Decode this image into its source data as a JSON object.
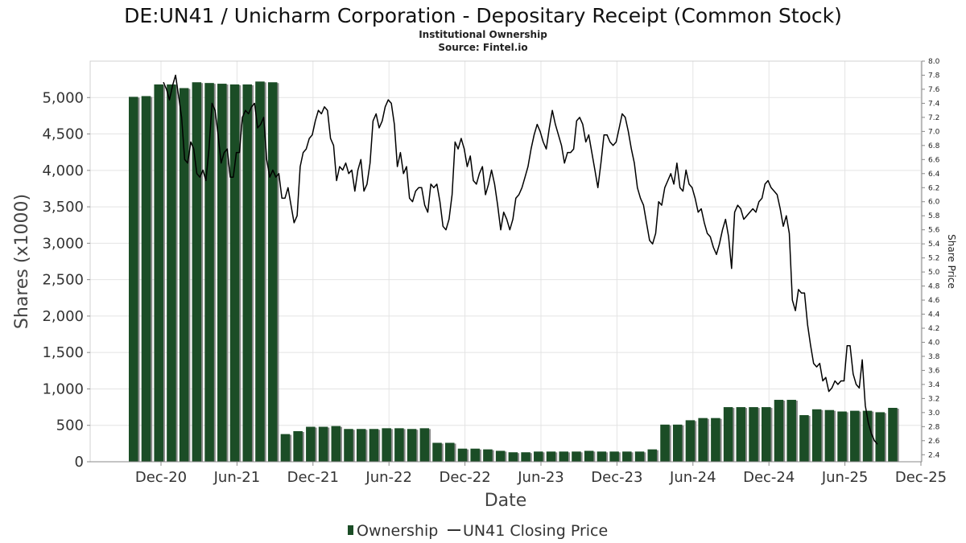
{
  "title": "DE:UN41 / Unicharm Corporation - Depositary Receipt (Common Stock)",
  "subtitle": "Institutional Ownership",
  "source": "Source: Fintel.io",
  "chart_data": {
    "type": "bar",
    "xlabel": "Date",
    "ylabel": "Shares (x1000)",
    "y2label": "Share Price",
    "ylim": [
      0,
      5500
    ],
    "y2lim": [
      2.3,
      8.0
    ],
    "grid": true,
    "legend_position": "bottom",
    "x_ticks": [
      "Dec-20",
      "Jun-21",
      "Dec-21",
      "Jun-22",
      "Dec-22",
      "Jun-23",
      "Dec-23",
      "Jun-24",
      "Dec-24",
      "Jun-25",
      "Dec-25"
    ],
    "y_ticks": [
      "0",
      "500",
      "1,000",
      "1,500",
      "2,000",
      "2,500",
      "3,000",
      "3,500",
      "4,000",
      "4,500",
      "5,000"
    ],
    "y2_ticks": [
      "2.4",
      "2.6",
      "2.8",
      "3.0",
      "3.2",
      "3.4",
      "3.6",
      "3.8",
      "4.0",
      "4.2",
      "4.4",
      "4.6",
      "4.8",
      "5.0",
      "5.2",
      "5.4",
      "5.6",
      "5.8",
      "6.0",
      "6.2",
      "6.4",
      "6.6",
      "6.8",
      "7.0",
      "7.2",
      "7.4",
      "7.6",
      "7.8",
      "8.0"
    ],
    "series": [
      {
        "name": "Ownership",
        "color": "#1b4d26",
        "values": [
          5010,
          5020,
          5180,
          5180,
          5130,
          5210,
          5200,
          5190,
          5180,
          5180,
          5220,
          5210,
          380,
          420,
          480,
          480,
          490,
          450,
          450,
          450,
          460,
          460,
          450,
          460,
          260,
          260,
          180,
          180,
          170,
          150,
          130,
          130,
          140,
          140,
          140,
          140,
          150,
          140,
          140,
          140,
          140,
          170,
          510,
          510,
          570,
          600,
          600,
          750,
          750,
          750,
          750,
          850,
          850,
          640,
          720,
          710,
          690,
          700,
          700,
          680,
          740
        ]
      },
      {
        "name": "UN41 Closing Price",
        "color": "#000000",
        "values": [
          7.7,
          7.6,
          7.45,
          7.65,
          7.8,
          7.5,
          7.2,
          6.6,
          6.55,
          6.85,
          6.75,
          6.4,
          6.35,
          6.45,
          6.3,
          6.75,
          7.4,
          7.3,
          6.95,
          6.55,
          6.7,
          6.75,
          6.35,
          6.35,
          6.7,
          6.7,
          7.2,
          7.3,
          7.25,
          7.35,
          7.4,
          7.05,
          7.1,
          7.2,
          6.6,
          6.35,
          6.45,
          6.35,
          6.4,
          6.05,
          6.05,
          6.2,
          5.95,
          5.7,
          5.8,
          6.5,
          6.7,
          6.75,
          6.9,
          6.95,
          7.15,
          7.3,
          7.25,
          7.35,
          7.3,
          6.9,
          6.8,
          6.3,
          6.5,
          6.45,
          6.55,
          6.4,
          6.45,
          6.15,
          6.45,
          6.6,
          6.15,
          6.25,
          6.55,
          7.15,
          7.25,
          7.05,
          7.15,
          7.35,
          7.45,
          7.4,
          7.1,
          6.5,
          6.7,
          6.4,
          6.5,
          6.05,
          6.0,
          6.15,
          6.2,
          6.2,
          5.95,
          5.85,
          6.25,
          6.2,
          6.25,
          6.0,
          5.65,
          5.6,
          5.75,
          6.1,
          6.85,
          6.75,
          6.9,
          6.75,
          6.5,
          6.65,
          6.3,
          6.25,
          6.4,
          6.5,
          6.1,
          6.25,
          6.45,
          6.25,
          5.95,
          5.6,
          5.85,
          5.75,
          5.6,
          5.75,
          6.05,
          6.1,
          6.2,
          6.35,
          6.5,
          6.75,
          6.95,
          7.1,
          7.0,
          6.85,
          6.75,
          7.05,
          7.3,
          7.1,
          6.95,
          6.8,
          6.55,
          6.7,
          6.7,
          6.75,
          7.15,
          7.2,
          7.1,
          6.85,
          6.95,
          6.7,
          6.45,
          6.2,
          6.55,
          6.95,
          6.95,
          6.85,
          6.8,
          6.85,
          7.05,
          7.25,
          7.2,
          7.0,
          6.75,
          6.55,
          6.2,
          6.05,
          5.95,
          5.7,
          5.45,
          5.4,
          5.55,
          6.0,
          5.95,
          6.2,
          6.3,
          6.4,
          6.25,
          6.55,
          6.2,
          6.15,
          6.45,
          6.25,
          6.2,
          6.05,
          5.85,
          5.9,
          5.7,
          5.55,
          5.5,
          5.35,
          5.25,
          5.4,
          5.6,
          5.75,
          5.5,
          5.05,
          5.85,
          5.95,
          5.9,
          5.75,
          5.8,
          5.85,
          5.9,
          5.85,
          6.0,
          6.05,
          6.25,
          6.3,
          6.2,
          6.15,
          6.1,
          5.9,
          5.65,
          5.8,
          5.55,
          4.6,
          4.45,
          4.75,
          4.7,
          4.7,
          4.25,
          3.95,
          3.7,
          3.65,
          3.7,
          3.45,
          3.5,
          3.3,
          3.35,
          3.45,
          3.4,
          3.45,
          3.45,
          3.95,
          3.95,
          3.55,
          3.4,
          3.35,
          3.75,
          3.1,
          2.85,
          2.7,
          2.6,
          2.55
        ]
      }
    ]
  }
}
